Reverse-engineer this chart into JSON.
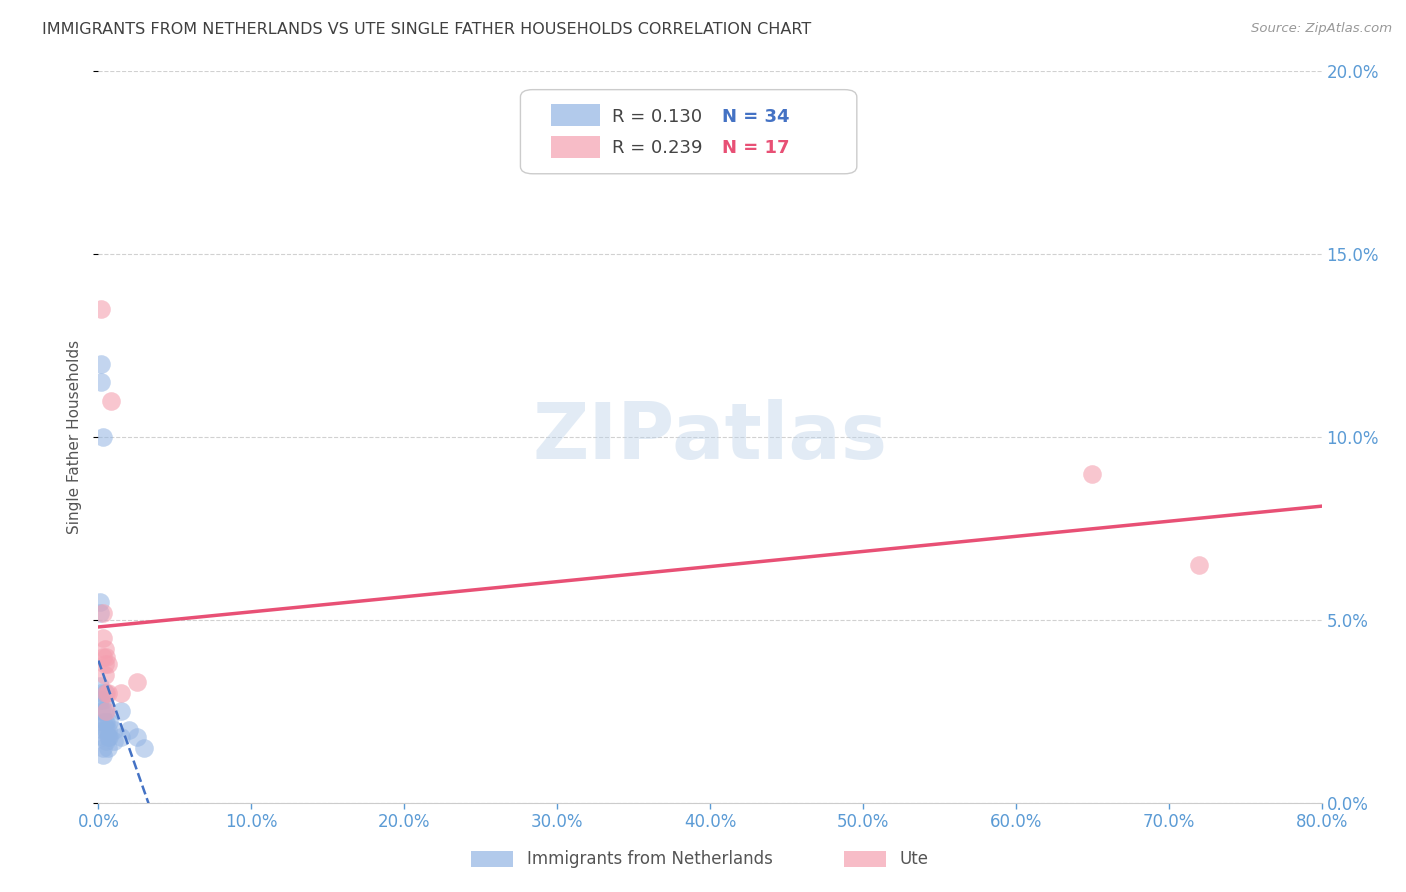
{
  "title": "IMMIGRANTS FROM NETHERLANDS VS UTE SINGLE FATHER HOUSEHOLDS CORRELATION CHART",
  "source": "Source: ZipAtlas.com",
  "xlabel_blue": "Immigrants from Netherlands",
  "xlabel_pink": "Ute",
  "ylabel": "Single Father Households",
  "xlim": [
    0.0,
    0.8
  ],
  "ylim": [
    0.0,
    0.2
  ],
  "xticks": [
    0.0,
    0.1,
    0.2,
    0.3,
    0.4,
    0.5,
    0.6,
    0.7,
    0.8
  ],
  "yticks": [
    0.0,
    0.05,
    0.1,
    0.15,
    0.2
  ],
  "legend_blue_r": "0.130",
  "legend_blue_n": "34",
  "legend_pink_r": "0.239",
  "legend_pink_n": "17",
  "blue_color": "#92b4e3",
  "pink_color": "#f4a0b0",
  "blue_line_color": "#4472c4",
  "pink_line_color": "#e85075",
  "axis_label_color": "#5b9bd5",
  "title_color": "#404040",
  "grid_color": "#cccccc",
  "watermark_color": "#b8cfe8",
  "blue_points": [
    [
      0.001,
      0.032
    ],
    [
      0.001,
      0.028
    ],
    [
      0.002,
      0.12
    ],
    [
      0.002,
      0.115
    ],
    [
      0.003,
      0.1
    ],
    [
      0.002,
      0.03
    ],
    [
      0.002,
      0.025
    ],
    [
      0.001,
      0.055
    ],
    [
      0.001,
      0.052
    ],
    [
      0.003,
      0.028
    ],
    [
      0.003,
      0.025
    ],
    [
      0.003,
      0.022
    ],
    [
      0.003,
      0.02
    ],
    [
      0.003,
      0.018
    ],
    [
      0.003,
      0.015
    ],
    [
      0.003,
      0.013
    ],
    [
      0.004,
      0.03
    ],
    [
      0.004,
      0.025
    ],
    [
      0.004,
      0.022
    ],
    [
      0.005,
      0.022
    ],
    [
      0.005,
      0.02
    ],
    [
      0.005,
      0.017
    ],
    [
      0.006,
      0.02
    ],
    [
      0.006,
      0.018
    ],
    [
      0.006,
      0.015
    ],
    [
      0.007,
      0.022
    ],
    [
      0.007,
      0.018
    ],
    [
      0.01,
      0.02
    ],
    [
      0.01,
      0.017
    ],
    [
      0.015,
      0.025
    ],
    [
      0.015,
      0.018
    ],
    [
      0.02,
      0.02
    ],
    [
      0.025,
      0.018
    ],
    [
      0.03,
      0.015
    ]
  ],
  "pink_points": [
    [
      0.002,
      0.135
    ],
    [
      0.003,
      0.052
    ],
    [
      0.003,
      0.045
    ],
    [
      0.003,
      0.04
    ],
    [
      0.004,
      0.042
    ],
    [
      0.004,
      0.038
    ],
    [
      0.004,
      0.035
    ],
    [
      0.005,
      0.04
    ],
    [
      0.005,
      0.03
    ],
    [
      0.005,
      0.025
    ],
    [
      0.006,
      0.038
    ],
    [
      0.006,
      0.03
    ],
    [
      0.008,
      0.11
    ],
    [
      0.015,
      0.03
    ],
    [
      0.025,
      0.033
    ],
    [
      0.65,
      0.09
    ],
    [
      0.72,
      0.065
    ]
  ]
}
